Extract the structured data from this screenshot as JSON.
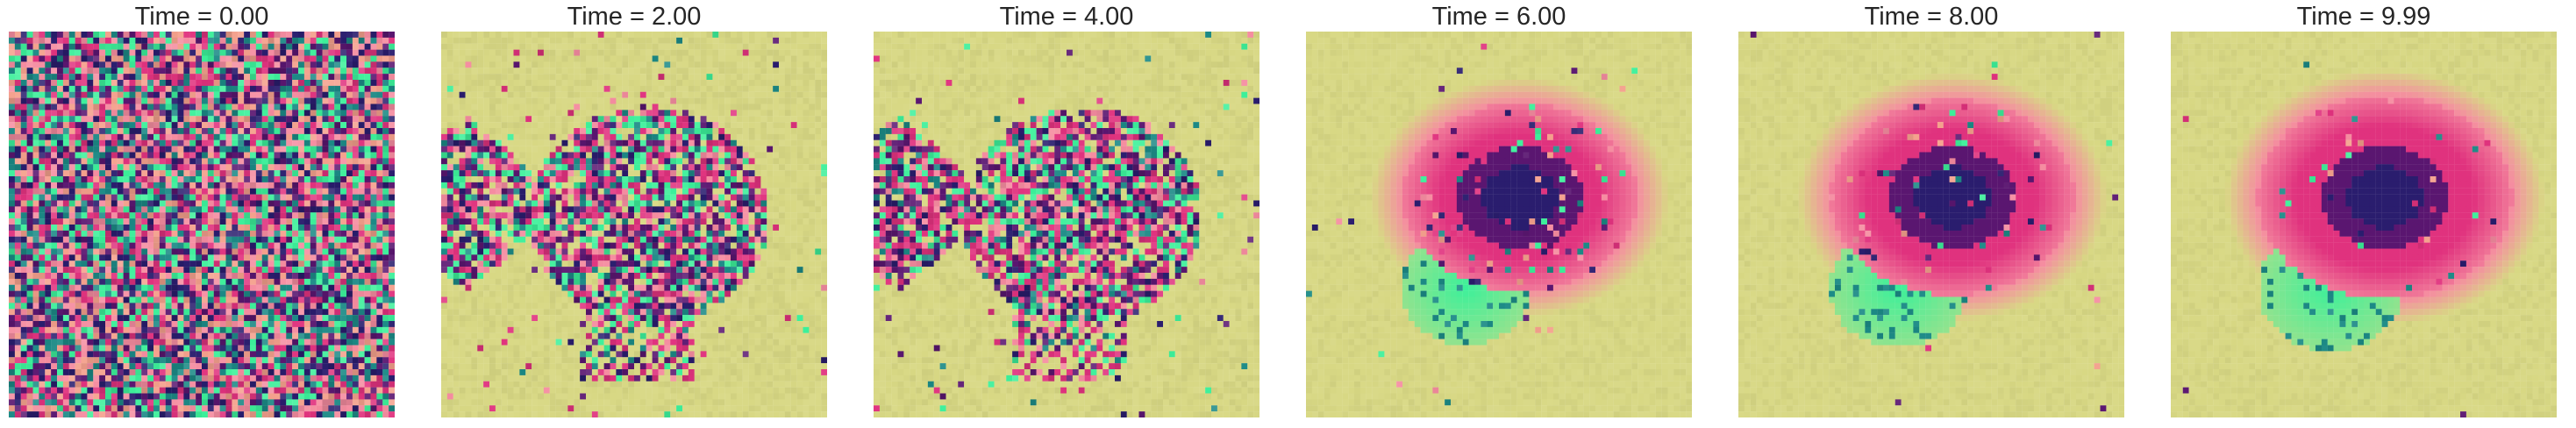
{
  "figure": {
    "panels": [
      {
        "title": "Time = 0.00"
      },
      {
        "title": "Time = 2.00"
      },
      {
        "title": "Time = 4.00"
      },
      {
        "title": "Time = 6.00"
      },
      {
        "title": "Time = 8.00"
      },
      {
        "title": "Time = 9.99"
      }
    ],
    "grid_resolution": 64,
    "colors": {
      "background": "#d8d884",
      "magenta": "#e0327e",
      "dark_purple": "#5a1670",
      "navy": "#2a1d6e",
      "teal": "#1c8a86",
      "green": "#3cf09a",
      "light_pink": "#f58ca0",
      "orange_pink": "#f4a08c"
    }
  }
}
